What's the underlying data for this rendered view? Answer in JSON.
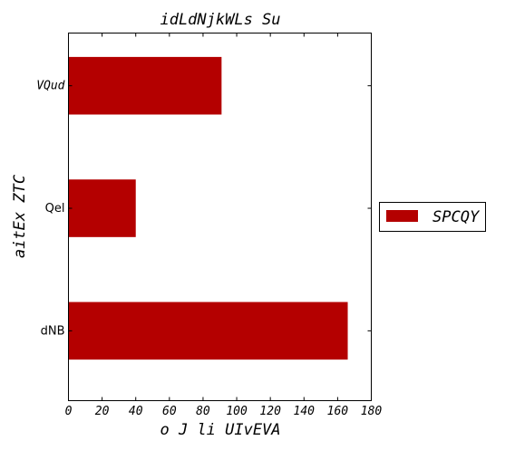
{
  "chart_data": {
    "type": "bar",
    "orientation": "horizontal",
    "title": "idLdNjkWLs Su",
    "xlabel": "o J li UIvEVA",
    "ylabel": "aitEx ZTC",
    "categories": [
      "VQud",
      "Qel",
      "dNB"
    ],
    "series": [
      {
        "name": "SPCQY",
        "color": "#b40000",
        "values": [
          91,
          40,
          166
        ]
      }
    ],
    "xlim": [
      0,
      180
    ],
    "xticks": [
      0,
      20,
      40,
      60,
      80,
      100,
      120,
      140,
      160,
      180
    ],
    "grid": false,
    "legend": "outside-right"
  }
}
